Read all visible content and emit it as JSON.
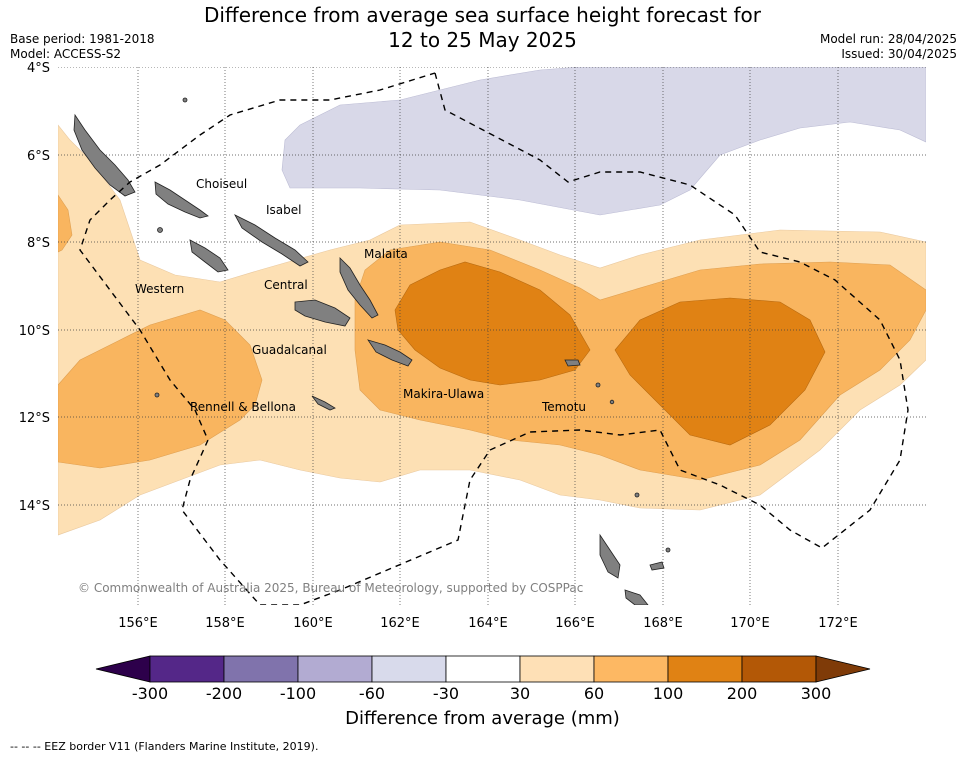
{
  "title_line1": "Difference from average sea surface height forecast for",
  "title_line2": "12 to 25 May 2025",
  "base_period": "Base period: 1981-2018",
  "model": "Model: ACCESS-S2",
  "model_run": "Model run: 28/04/2025",
  "issued": "Issued: 30/04/2025",
  "map": {
    "lat_labels": [
      "4°S",
      "6°S",
      "8°S",
      "10°S",
      "12°S",
      "14°S"
    ],
    "lon_labels": [
      "156°E",
      "158°E",
      "160°E",
      "162°E",
      "164°E",
      "166°E",
      "168°E",
      "170°E",
      "172°E"
    ],
    "regions": [
      "Choiseul",
      "Isabel",
      "Malaita",
      "Western",
      "Central",
      "Guadalcanal",
      "Makira-Ulawa",
      "Temotu",
      "Rennell & Bellona"
    ],
    "copyright": "© Commonwealth of Australia 2025, Bureau of Meteorology, supported by COSPPac",
    "colors": {
      "neg_30_60": "#d8d8e8",
      "pos_30_60": "#fde0b4",
      "pos_60_100": "#f9b55f",
      "pos_100_200": "#e08214",
      "land": "#808080",
      "eez": "#000000"
    }
  },
  "colorbar": {
    "title": "Difference from average (mm)",
    "ticks": [
      "-300",
      "-200",
      "-100",
      "-60",
      "-30",
      "30",
      "60",
      "100",
      "200",
      "300"
    ],
    "colors": [
      "#542788",
      "#8073ac",
      "#b2abd2",
      "#d8daeb",
      "#ffffff",
      "#fee0b6",
      "#fdb863",
      "#e08214",
      "#b35806"
    ],
    "extend_low": "#2d004b",
    "extend_high": "#7f3b08"
  },
  "footnote": "--  --  -- EEZ border V11 (Flanders Marine Institute, 2019)."
}
